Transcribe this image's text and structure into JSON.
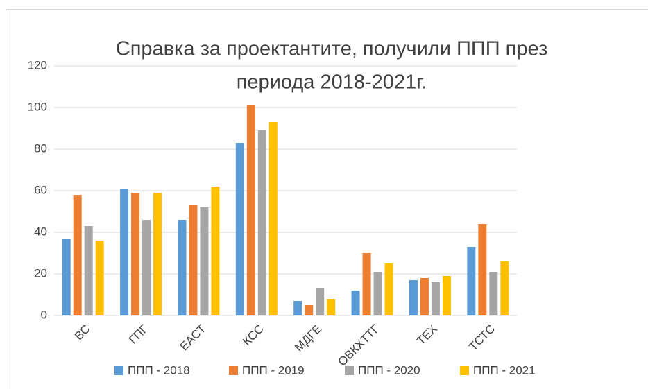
{
  "chart_data": {
    "type": "bar",
    "title": [
      "Справка за проектантите, получили ППП през",
      "периода 2018-2021г."
    ],
    "categories": [
      "ВС",
      "ГПГ",
      "ЕАСТ",
      "КСС",
      "МДГЕ",
      "ОВКХТТГ",
      "ТЕХ",
      "ТСТС"
    ],
    "series": [
      {
        "name": "ППП - 2018",
        "color": "#5b9bd5",
        "values": [
          37,
          61,
          46,
          83,
          7,
          12,
          17,
          33
        ]
      },
      {
        "name": "ППП - 2019",
        "color": "#ed7d31",
        "values": [
          58,
          59,
          53,
          101,
          5,
          30,
          18,
          44
        ]
      },
      {
        "name": "ППП - 2020",
        "color": "#a5a5a5",
        "values": [
          43,
          46,
          52,
          89,
          13,
          21,
          16,
          21
        ]
      },
      {
        "name": "ППП - 2021",
        "color": "#ffc000",
        "values": [
          36,
          59,
          62,
          93,
          8,
          25,
          19,
          26
        ]
      }
    ],
    "ylim": [
      0,
      120
    ],
    "yticks": [
      0,
      20,
      40,
      60,
      80,
      100,
      120
    ],
    "grid": true,
    "legend": "bottom"
  }
}
